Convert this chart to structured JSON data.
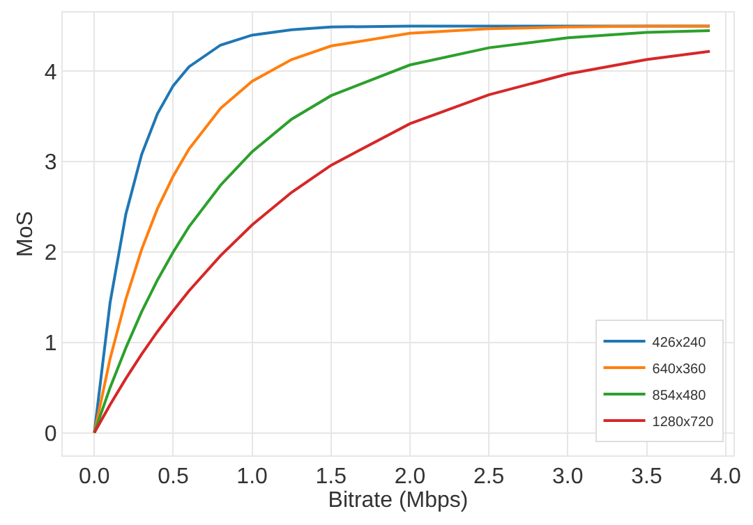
{
  "chart_data": {
    "type": "line",
    "xlabel": "Bitrate (Mbps)",
    "ylabel": "MoS",
    "x": [
      0,
      0.1,
      0.2,
      0.3,
      0.4,
      0.5,
      0.6,
      0.8,
      1.0,
      1.25,
      1.5,
      2.0,
      2.5,
      3.0,
      3.5,
      3.9
    ],
    "series": [
      {
        "name": "426x240",
        "color": "#1f77b4",
        "values": [
          0,
          1.44,
          2.42,
          3.08,
          3.53,
          3.84,
          4.05,
          4.29,
          4.4,
          4.46,
          4.49,
          4.5,
          4.5,
          4.5,
          4.5,
          4.5
        ]
      },
      {
        "name": "640x360",
        "color": "#ff7f0e",
        "values": [
          0,
          0.82,
          1.48,
          2.03,
          2.48,
          2.84,
          3.14,
          3.59,
          3.89,
          4.13,
          4.28,
          4.42,
          4.47,
          4.49,
          4.5,
          4.5
        ]
      },
      {
        "name": "854x480",
        "color": "#2ca02c",
        "values": [
          0,
          0.5,
          0.94,
          1.34,
          1.69,
          2.0,
          2.28,
          2.74,
          3.11,
          3.47,
          3.73,
          4.07,
          4.26,
          4.37,
          4.43,
          4.45
        ]
      },
      {
        "name": "1280x720",
        "color": "#d62728",
        "values": [
          0,
          0.31,
          0.6,
          0.87,
          1.12,
          1.35,
          1.57,
          1.96,
          2.3,
          2.66,
          2.96,
          3.42,
          3.74,
          3.97,
          4.13,
          4.22
        ]
      }
    ],
    "xlim": [
      -0.2,
      4.05
    ],
    "ylim": [
      -0.25,
      4.65
    ],
    "xticks": [
      {
        "value": 0,
        "label": "0.0"
      },
      0.5,
      {
        "value": 1,
        "label": "1.0"
      },
      1.5,
      {
        "value": 2,
        "label": "2.0"
      },
      2.5,
      {
        "value": 3,
        "label": "3.0"
      },
      3.5,
      {
        "value": 4,
        "label": "4.0"
      }
    ],
    "yticks": [
      0,
      1,
      2,
      3,
      4
    ],
    "grid": true,
    "legend": "bottom right",
    "marker": "none",
    "line_style": "solid"
  }
}
